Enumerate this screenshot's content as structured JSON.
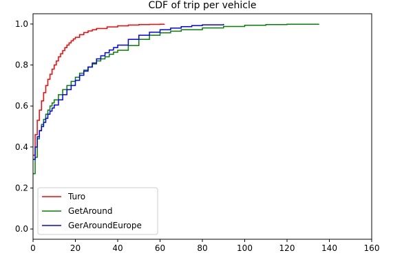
{
  "chart_data": {
    "type": "line",
    "title": "CDF of trip per vehicle",
    "xlabel": "",
    "ylabel": "",
    "xlim": [
      0,
      160
    ],
    "ylim": [
      -0.05,
      1.05
    ],
    "xticks": [
      0,
      20,
      40,
      60,
      80,
      100,
      120,
      140,
      160
    ],
    "yticks": [
      0.0,
      0.2,
      0.4,
      0.6,
      0.8,
      1.0
    ],
    "xtick_labels": [
      "0",
      "20",
      "40",
      "60",
      "80",
      "100",
      "120",
      "140",
      "160"
    ],
    "ytick_labels": [
      "0.0",
      "0.2",
      "0.4",
      "0.6",
      "0.8",
      "1.0"
    ],
    "grid": false,
    "legend_position": "lower-left",
    "step": true,
    "series": [
      {
        "name": "Turo",
        "color": "#ff0000",
        "x": [
          0,
          1,
          2,
          3,
          4,
          5,
          6,
          7,
          8,
          9,
          10,
          11,
          12,
          13,
          14,
          15,
          16,
          17,
          18,
          19,
          20,
          22,
          24,
          26,
          28,
          30,
          35,
          40,
          45,
          50,
          55,
          60,
          62
        ],
        "y": [
          0.36,
          0.46,
          0.53,
          0.58,
          0.625,
          0.665,
          0.7,
          0.73,
          0.755,
          0.78,
          0.8,
          0.82,
          0.84,
          0.855,
          0.87,
          0.885,
          0.897,
          0.908,
          0.918,
          0.927,
          0.935,
          0.948,
          0.958,
          0.966,
          0.972,
          0.978,
          0.986,
          0.991,
          0.995,
          0.997,
          0.998,
          0.999,
          1.0
        ]
      },
      {
        "name": "GetAround",
        "color": "#008000",
        "x": [
          0,
          1,
          2,
          3,
          4,
          5,
          6,
          7,
          8,
          9,
          10,
          12,
          14,
          16,
          18,
          20,
          22,
          24,
          26,
          28,
          30,
          32,
          34,
          36,
          38,
          40,
          45,
          50,
          55,
          60,
          65,
          70,
          80,
          90,
          100,
          110,
          120,
          135
        ],
        "y": [
          0.27,
          0.35,
          0.44,
          0.48,
          0.51,
          0.535,
          0.56,
          0.58,
          0.6,
          0.615,
          0.63,
          0.655,
          0.68,
          0.7,
          0.72,
          0.74,
          0.76,
          0.775,
          0.79,
          0.805,
          0.82,
          0.83,
          0.84,
          0.852,
          0.862,
          0.872,
          0.895,
          0.925,
          0.945,
          0.957,
          0.965,
          0.972,
          0.981,
          0.988,
          0.994,
          0.997,
          0.999,
          1.0
        ]
      },
      {
        "name": "GerAroundEurope",
        "color": "#0000ff",
        "x": [
          0,
          1,
          2,
          3,
          4,
          5,
          6,
          7,
          8,
          9,
          10,
          12,
          14,
          16,
          18,
          20,
          22,
          24,
          26,
          28,
          30,
          32,
          34,
          36,
          38,
          40,
          45,
          50,
          55,
          60,
          65,
          70,
          75,
          80,
          90
        ],
        "y": [
          0.34,
          0.4,
          0.45,
          0.48,
          0.5,
          0.52,
          0.54,
          0.56,
          0.575,
          0.59,
          0.605,
          0.63,
          0.655,
          0.68,
          0.7,
          0.725,
          0.75,
          0.77,
          0.79,
          0.81,
          0.83,
          0.845,
          0.86,
          0.873,
          0.885,
          0.897,
          0.925,
          0.945,
          0.96,
          0.972,
          0.98,
          0.987,
          0.992,
          0.996,
          1.0
        ]
      }
    ]
  }
}
